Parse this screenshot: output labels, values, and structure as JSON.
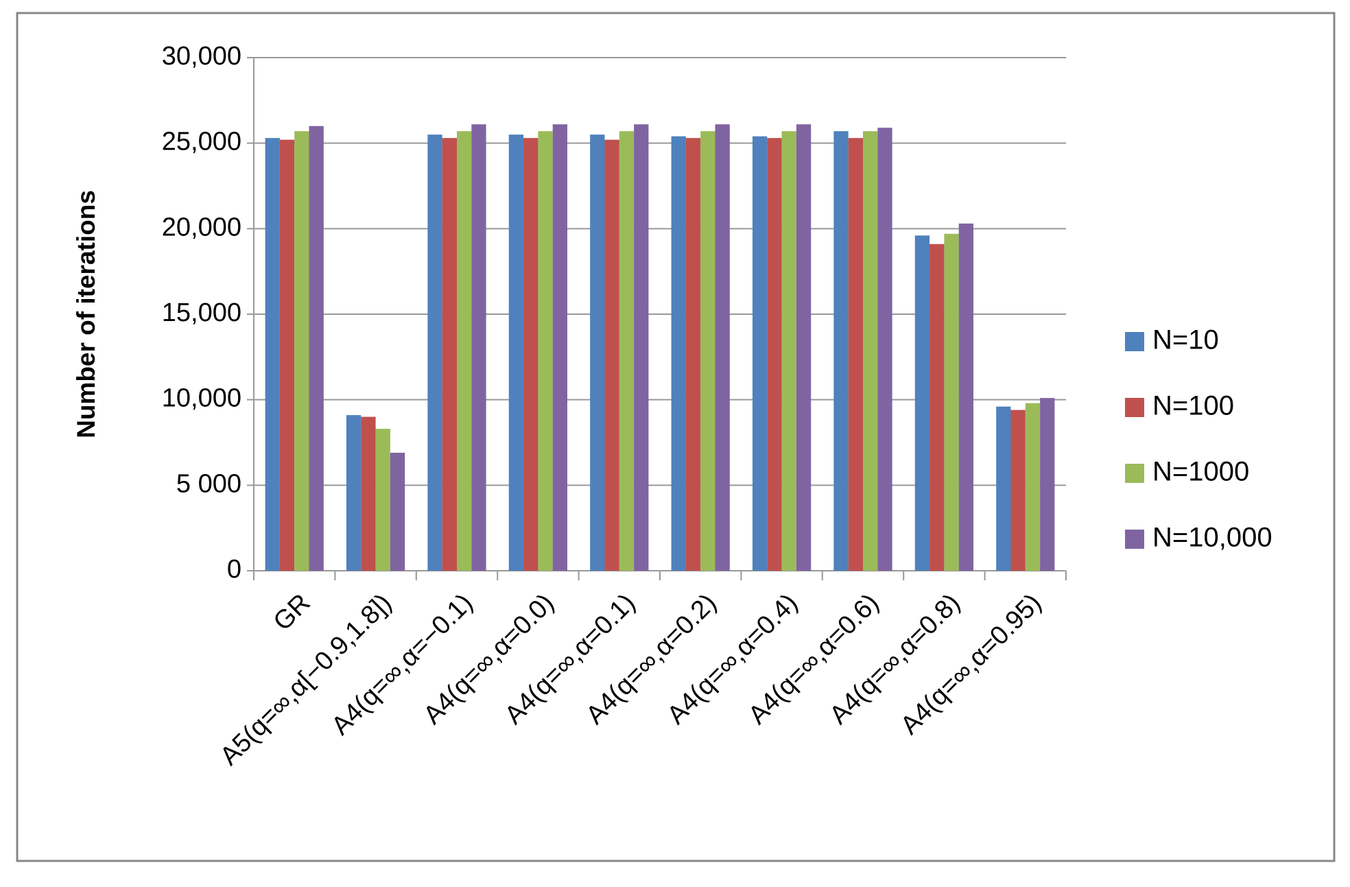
{
  "chart_data": {
    "type": "bar",
    "y_label": "Number of iterations",
    "categories": [
      "GR",
      "A5(q=∞,α[−0.9,1.8])",
      "A4(q=∞,α=−0.1)",
      "A4(q=∞,α=0.0)",
      "A4(q=∞,α=0.1)",
      "A4(q=∞,α=0.2)",
      "A4(q=∞,α=0.4)",
      "A4(q=∞,α=0.6)",
      "A4(q=∞,α=0.8)",
      "A4(q=∞,α=0.95)"
    ],
    "series": [
      {
        "name": "N=10",
        "color": "#4f81bd",
        "values": [
          25300,
          9100,
          25500,
          25500,
          25500,
          25400,
          25400,
          25700,
          19600,
          9600
        ]
      },
      {
        "name": "N=100",
        "color": "#c0504d",
        "values": [
          25200,
          9000,
          25300,
          25300,
          25200,
          25300,
          25300,
          25300,
          19100,
          9400
        ]
      },
      {
        "name": "N=1000",
        "color": "#9bbb59",
        "values": [
          25700,
          8300,
          25700,
          25700,
          25700,
          25700,
          25700,
          25700,
          19700,
          9800
        ]
      },
      {
        "name": "N=10,000",
        "color": "#8064a2",
        "values": [
          26000,
          6900,
          26100,
          26100,
          26100,
          26100,
          26100,
          25900,
          20300,
          10100
        ]
      }
    ],
    "ylim": [
      0,
      30000
    ],
    "yticks": [
      0,
      {
        "value": 5000,
        "label": "5 000"
      },
      {
        "value": 10000,
        "label": "10,000"
      },
      {
        "value": 15000,
        "label": "15,000"
      },
      {
        "value": 20000,
        "label": "20,000"
      },
      {
        "value": 25000,
        "label": "25,000"
      },
      {
        "value": 30000,
        "label": "30,000"
      }
    ],
    "grid": true,
    "legend": "right"
  }
}
